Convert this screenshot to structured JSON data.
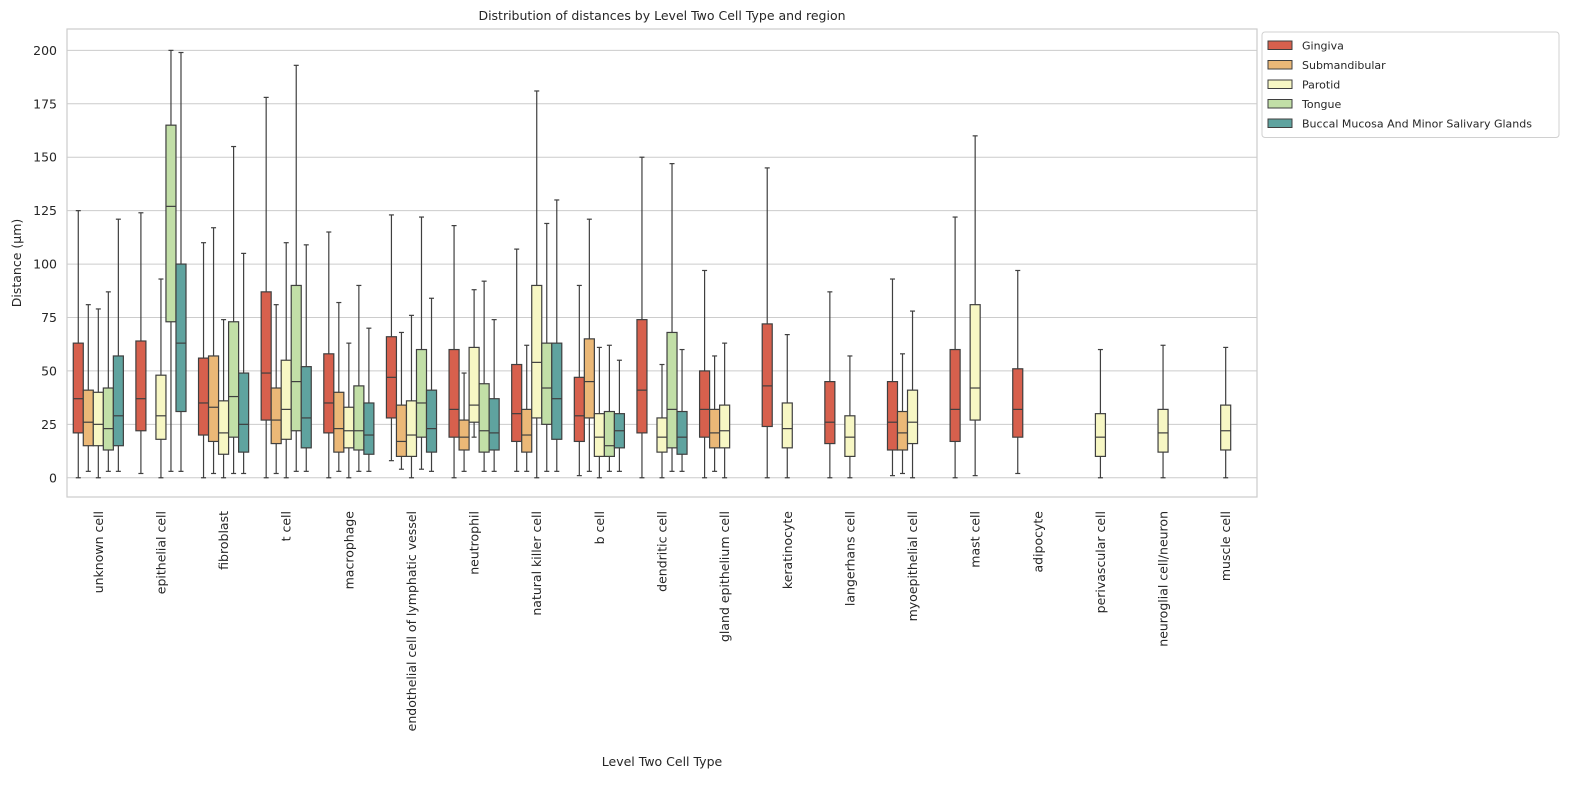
{
  "chart_data": {
    "type": "box",
    "title": "Distribution of distances by Level Two Cell Type and region",
    "xlabel": "Level Two Cell Type",
    "ylabel": "Distance (µm)",
    "ylim": [
      -9,
      210
    ],
    "yticks": [
      0,
      25,
      50,
      75,
      100,
      125,
      150,
      175,
      200
    ],
    "grid": true,
    "legend_position": "outside-top-right",
    "hue_order": [
      "Gingiva",
      "Submandibular",
      "Parotid",
      "Tongue",
      "Buccal Mucosa And Minor Salivary Glands"
    ],
    "colors": {
      "Gingiva": "#d7604d",
      "Submandibular": "#ebb877",
      "Parotid": "#f7f7c4",
      "Tongue": "#c2dfa7",
      "Buccal Mucosa And Minor Salivary Glands": "#5fa39f"
    },
    "categories": [
      "unknown cell",
      "epithelial cell",
      "fibroblast",
      "t cell",
      "macrophage",
      "endothelial cell of lymphatic vessel",
      "neutrophil",
      "natural killer cell",
      "b cell",
      "dendritic cell",
      "gland epithelium cell",
      "keratinocyte",
      "langerhans cell",
      "myoepithelial cell",
      "mast cell",
      "adipocyte",
      "perivascular cell",
      "neuroglial cell/neuron",
      "muscle cell"
    ],
    "boxes": [
      {
        "category": "unknown cell",
        "hue": "Gingiva",
        "whislo": 0,
        "q1": 21,
        "med": 37,
        "q3": 63,
        "whishi": 125
      },
      {
        "category": "unknown cell",
        "hue": "Submandibular",
        "whislo": 3,
        "q1": 15,
        "med": 26,
        "q3": 41,
        "whishi": 81
      },
      {
        "category": "unknown cell",
        "hue": "Parotid",
        "whislo": 0,
        "q1": 15,
        "med": 25,
        "q3": 40,
        "whishi": 79
      },
      {
        "category": "unknown cell",
        "hue": "Tongue",
        "whislo": 3,
        "q1": 13,
        "med": 23,
        "q3": 42,
        "whishi": 87
      },
      {
        "category": "unknown cell",
        "hue": "Buccal Mucosa And Minor Salivary Glands",
        "whislo": 3,
        "q1": 15,
        "med": 29,
        "q3": 57,
        "whishi": 121
      },
      {
        "category": "epithelial cell",
        "hue": "Gingiva",
        "whislo": 2,
        "q1": 22,
        "med": 37,
        "q3": 64,
        "whishi": 124
      },
      {
        "category": "epithelial cell",
        "hue": "Parotid",
        "whislo": 0,
        "q1": 18,
        "med": 29,
        "q3": 48,
        "whishi": 93
      },
      {
        "category": "epithelial cell",
        "hue": "Tongue",
        "whislo": 3,
        "q1": 73,
        "med": 127,
        "q3": 165,
        "whishi": 200
      },
      {
        "category": "epithelial cell",
        "hue": "Buccal Mucosa And Minor Salivary Glands",
        "whislo": 3,
        "q1": 31,
        "med": 63,
        "q3": 100,
        "whishi": 199
      },
      {
        "category": "fibroblast",
        "hue": "Gingiva",
        "whislo": 0,
        "q1": 20,
        "med": 35,
        "q3": 56,
        "whishi": 110
      },
      {
        "category": "fibroblast",
        "hue": "Submandibular",
        "whislo": 2,
        "q1": 17,
        "med": 33,
        "q3": 57,
        "whishi": 117
      },
      {
        "category": "fibroblast",
        "hue": "Parotid",
        "whislo": 0,
        "q1": 11,
        "med": 21,
        "q3": 36,
        "whishi": 74
      },
      {
        "category": "fibroblast",
        "hue": "Tongue",
        "whislo": 2,
        "q1": 19,
        "med": 38,
        "q3": 73,
        "whishi": 155
      },
      {
        "category": "fibroblast",
        "hue": "Buccal Mucosa And Minor Salivary Glands",
        "whislo": 2,
        "q1": 12,
        "med": 25,
        "q3": 49,
        "whishi": 105
      },
      {
        "category": "t cell",
        "hue": "Gingiva",
        "whislo": 0,
        "q1": 27,
        "med": 49,
        "q3": 87,
        "whishi": 178
      },
      {
        "category": "t cell",
        "hue": "Submandibular",
        "whislo": 2,
        "q1": 16,
        "med": 27,
        "q3": 42,
        "whishi": 81
      },
      {
        "category": "t cell",
        "hue": "Parotid",
        "whislo": 0,
        "q1": 18,
        "med": 32,
        "q3": 55,
        "whishi": 110
      },
      {
        "category": "t cell",
        "hue": "Tongue",
        "whislo": 3,
        "q1": 22,
        "med": 45,
        "q3": 90,
        "whishi": 193
      },
      {
        "category": "t cell",
        "hue": "Buccal Mucosa And Minor Salivary Glands",
        "whislo": 3,
        "q1": 14,
        "med": 28,
        "q3": 52,
        "whishi": 109
      },
      {
        "category": "macrophage",
        "hue": "Gingiva",
        "whislo": 0,
        "q1": 21,
        "med": 35,
        "q3": 58,
        "whishi": 115
      },
      {
        "category": "macrophage",
        "hue": "Submandibular",
        "whislo": 3,
        "q1": 12,
        "med": 23,
        "q3": 40,
        "whishi": 82
      },
      {
        "category": "macrophage",
        "hue": "Parotid",
        "whislo": 0,
        "q1": 14,
        "med": 22,
        "q3": 33,
        "whishi": 63
      },
      {
        "category": "macrophage",
        "hue": "Tongue",
        "whislo": 3,
        "q1": 13,
        "med": 22,
        "q3": 43,
        "whishi": 90
      },
      {
        "category": "macrophage",
        "hue": "Buccal Mucosa And Minor Salivary Glands",
        "whislo": 3,
        "q1": 11,
        "med": 20,
        "q3": 35,
        "whishi": 70
      },
      {
        "category": "endothelial cell of lymphatic vessel",
        "hue": "Gingiva",
        "whislo": 8,
        "q1": 28,
        "med": 47,
        "q3": 66,
        "whishi": 123
      },
      {
        "category": "endothelial cell of lymphatic vessel",
        "hue": "Submandibular",
        "whislo": 4,
        "q1": 10,
        "med": 17,
        "q3": 34,
        "whishi": 68
      },
      {
        "category": "endothelial cell of lymphatic vessel",
        "hue": "Parotid",
        "whislo": 0,
        "q1": 10,
        "med": 20,
        "q3": 36,
        "whishi": 76
      },
      {
        "category": "endothelial cell of lymphatic vessel",
        "hue": "Tongue",
        "whislo": 4,
        "q1": 19,
        "med": 35,
        "q3": 60,
        "whishi": 122
      },
      {
        "category": "endothelial cell of lymphatic vessel",
        "hue": "Buccal Mucosa And Minor Salivary Glands",
        "whislo": 3,
        "q1": 12,
        "med": 23,
        "q3": 41,
        "whishi": 84
      },
      {
        "category": "neutrophil",
        "hue": "Gingiva",
        "whislo": 0,
        "q1": 19,
        "med": 32,
        "q3": 60,
        "whishi": 118
      },
      {
        "category": "neutrophil",
        "hue": "Submandibular",
        "whislo": 3,
        "q1": 13,
        "med": 19,
        "q3": 27,
        "whishi": 49
      },
      {
        "category": "neutrophil",
        "hue": "Parotid",
        "whislo": 19,
        "q1": 26,
        "med": 34,
        "q3": 61,
        "whishi": 88
      },
      {
        "category": "neutrophil",
        "hue": "Tongue",
        "whislo": 3,
        "q1": 12,
        "med": 22,
        "q3": 44,
        "whishi": 92
      },
      {
        "category": "neutrophil",
        "hue": "Buccal Mucosa And Minor Salivary Glands",
        "whislo": 3,
        "q1": 13,
        "med": 21,
        "q3": 37,
        "whishi": 74
      },
      {
        "category": "natural killer cell",
        "hue": "Gingiva",
        "whislo": 3,
        "q1": 17,
        "med": 30,
        "q3": 53,
        "whishi": 107
      },
      {
        "category": "natural killer cell",
        "hue": "Submandibular",
        "whislo": 3,
        "q1": 12,
        "med": 20,
        "q3": 32,
        "whishi": 62
      },
      {
        "category": "natural killer cell",
        "hue": "Parotid",
        "whislo": 0,
        "q1": 28,
        "med": 54,
        "q3": 90,
        "whishi": 181
      },
      {
        "category": "natural killer cell",
        "hue": "Tongue",
        "whislo": 3,
        "q1": 25,
        "med": 42,
        "q3": 63,
        "whishi": 119
      },
      {
        "category": "natural killer cell",
        "hue": "Buccal Mucosa And Minor Salivary Glands",
        "whislo": 3,
        "q1": 18,
        "med": 37,
        "q3": 63,
        "whishi": 130
      },
      {
        "category": "b cell",
        "hue": "Gingiva",
        "whislo": 1,
        "q1": 17,
        "med": 29,
        "q3": 47,
        "whishi": 90
      },
      {
        "category": "b cell",
        "hue": "Submandibular",
        "whislo": 3,
        "q1": 28,
        "med": 45,
        "q3": 65,
        "whishi": 121
      },
      {
        "category": "b cell",
        "hue": "Parotid",
        "whislo": 0,
        "q1": 10,
        "med": 19,
        "q3": 30,
        "whishi": 61
      },
      {
        "category": "b cell",
        "hue": "Tongue",
        "whislo": 3,
        "q1": 10,
        "med": 15,
        "q3": 31,
        "whishi": 62
      },
      {
        "category": "b cell",
        "hue": "Buccal Mucosa And Minor Salivary Glands",
        "whislo": 3,
        "q1": 14,
        "med": 22,
        "q3": 30,
        "whishi": 55
      },
      {
        "category": "dendritic cell",
        "hue": "Gingiva",
        "whislo": 0,
        "q1": 21,
        "med": 41,
        "q3": 74,
        "whishi": 150
      },
      {
        "category": "dendritic cell",
        "hue": "Parotid",
        "whislo": 0,
        "q1": 12,
        "med": 19,
        "q3": 28,
        "whishi": 53
      },
      {
        "category": "dendritic cell",
        "hue": "Tongue",
        "whislo": 3,
        "q1": 14,
        "med": 32,
        "q3": 68,
        "whishi": 147
      },
      {
        "category": "dendritic cell",
        "hue": "Buccal Mucosa And Minor Salivary Glands",
        "whislo": 3,
        "q1": 11,
        "med": 19,
        "q3": 31,
        "whishi": 60
      },
      {
        "category": "gland epithelium cell",
        "hue": "Gingiva",
        "whislo": 0,
        "q1": 19,
        "med": 32,
        "q3": 50,
        "whishi": 97
      },
      {
        "category": "gland epithelium cell",
        "hue": "Submandibular",
        "whislo": 3,
        "q1": 14,
        "med": 21,
        "q3": 32,
        "whishi": 57
      },
      {
        "category": "gland epithelium cell",
        "hue": "Parotid",
        "whislo": 0,
        "q1": 14,
        "med": 22,
        "q3": 34,
        "whishi": 63
      },
      {
        "category": "keratinocyte",
        "hue": "Gingiva",
        "whislo": 0,
        "q1": 24,
        "med": 43,
        "q3": 72,
        "whishi": 145
      },
      {
        "category": "keratinocyte",
        "hue": "Parotid",
        "whislo": 0,
        "q1": 14,
        "med": 23,
        "q3": 35,
        "whishi": 67
      },
      {
        "category": "langerhans cell",
        "hue": "Gingiva",
        "whislo": 0,
        "q1": 16,
        "med": 26,
        "q3": 45,
        "whishi": 87
      },
      {
        "category": "langerhans cell",
        "hue": "Parotid",
        "whislo": 0,
        "q1": 10,
        "med": 19,
        "q3": 29,
        "whishi": 57
      },
      {
        "category": "myoepithelial cell",
        "hue": "Gingiva",
        "whislo": 1,
        "q1": 13,
        "med": 26,
        "q3": 45,
        "whishi": 93
      },
      {
        "category": "myoepithelial cell",
        "hue": "Submandibular",
        "whislo": 2,
        "q1": 13,
        "med": 21,
        "q3": 31,
        "whishi": 58
      },
      {
        "category": "myoepithelial cell",
        "hue": "Parotid",
        "whislo": 0,
        "q1": 16,
        "med": 26,
        "q3": 41,
        "whishi": 78
      },
      {
        "category": "mast cell",
        "hue": "Gingiva",
        "whislo": 0,
        "q1": 17,
        "med": 32,
        "q3": 60,
        "whishi": 122
      },
      {
        "category": "mast cell",
        "hue": "Parotid",
        "whislo": 1,
        "q1": 27,
        "med": 42,
        "q3": 81,
        "whishi": 160
      },
      {
        "category": "adipocyte",
        "hue": "Gingiva",
        "whislo": 2,
        "q1": 19,
        "med": 32,
        "q3": 51,
        "whishi": 97
      },
      {
        "category": "perivascular cell",
        "hue": "Parotid",
        "whislo": 0,
        "q1": 10,
        "med": 19,
        "q3": 30,
        "whishi": 60
      },
      {
        "category": "neuroglial cell/neuron",
        "hue": "Parotid",
        "whislo": 0,
        "q1": 12,
        "med": 21,
        "q3": 32,
        "whishi": 62
      },
      {
        "category": "muscle cell",
        "hue": "Parotid",
        "whislo": 0,
        "q1": 13,
        "med": 22,
        "q3": 34,
        "whishi": 61
      }
    ]
  }
}
